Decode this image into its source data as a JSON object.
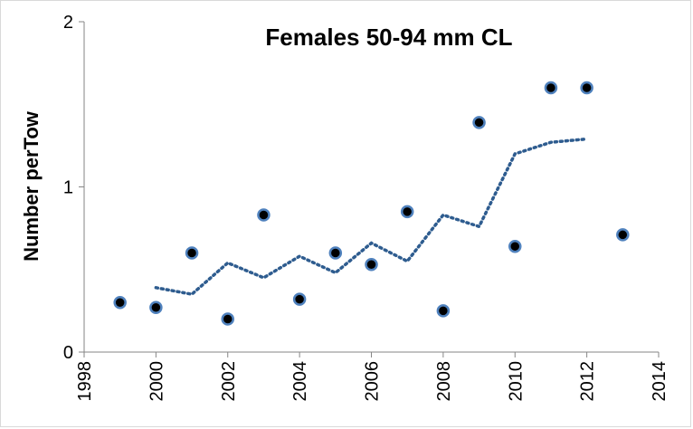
{
  "chart_data": {
    "type": "scatter",
    "title": "Females 50-94 mm CL",
    "y_label": "Number perTow",
    "xlim": [
      1998,
      2014
    ],
    "xticks": [
      1998,
      2000,
      2002,
      2004,
      2006,
      2008,
      2010,
      2012,
      2014
    ],
    "ylim": [
      0,
      2
    ],
    "yticks": [
      0,
      1,
      2
    ],
    "series": [
      {
        "type": "scatter",
        "color": "#000000",
        "edge_color": "#4f81bd",
        "x": [
          1999,
          2000,
          2001,
          2002,
          2003,
          2004,
          2005,
          2006,
          2007,
          2008,
          2009,
          2010,
          2011,
          2012,
          2013
        ],
        "values": [
          0.3,
          0.27,
          0.6,
          0.2,
          0.83,
          0.32,
          0.6,
          0.53,
          0.85,
          0.25,
          1.39,
          0.64,
          1.6,
          1.6,
          0.71
        ]
      },
      {
        "type": "line",
        "color": "#2e5c8f",
        "style": "dotted",
        "x": [
          2000,
          2001,
          2002,
          2003,
          2004,
          2005,
          2006,
          2007,
          2008,
          2009,
          2010,
          2011,
          2012
        ],
        "values": [
          0.39,
          0.35,
          0.54,
          0.45,
          0.58,
          0.48,
          0.66,
          0.55,
          0.83,
          0.76,
          1.2,
          1.27,
          1.29
        ]
      }
    ]
  }
}
